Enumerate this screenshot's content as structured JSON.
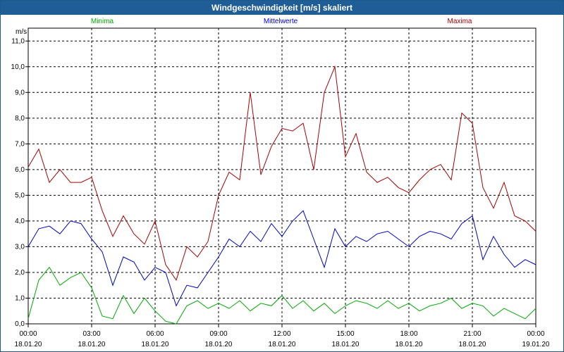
{
  "window": {
    "title": "Windgeschwindigkeit [m/s] skaliert"
  },
  "chart_data": {
    "type": "line",
    "title": "Windgeschwindigkeit [m/s] skaliert",
    "ylabel": "m/s",
    "ylim": [
      0,
      11.5
    ],
    "xlim": [
      0,
      24
    ],
    "grid": true,
    "legend_position": "top",
    "yticks": [
      "0,0",
      "1,0",
      "2,0",
      "3,0",
      "4,0",
      "5,0",
      "6,0",
      "7,0",
      "8,0",
      "9,0",
      "10,0",
      "11,0"
    ],
    "xticks": [
      {
        "time": "00:00",
        "date": "18.01.20"
      },
      {
        "time": "03:00",
        "date": "18.01.20"
      },
      {
        "time": "06:00",
        "date": "18.01.20"
      },
      {
        "time": "09:00",
        "date": "18.01.20"
      },
      {
        "time": "12:00",
        "date": "18.01.20"
      },
      {
        "time": "15:00",
        "date": "18.01.20"
      },
      {
        "time": "18:00",
        "date": "18.01.20"
      },
      {
        "time": "21:00",
        "date": "18.01.20"
      },
      {
        "time": "00:00",
        "date": "19.01.20"
      }
    ],
    "x": [
      0,
      0.5,
      1,
      1.5,
      2,
      2.5,
      3,
      3.5,
      4,
      4.5,
      5,
      5.5,
      6,
      6.5,
      7,
      7.5,
      8,
      8.5,
      9,
      9.5,
      10,
      10.5,
      11,
      11.5,
      12,
      12.5,
      13,
      13.5,
      14,
      14.5,
      15,
      15.5,
      16,
      16.5,
      17,
      17.5,
      18,
      18.5,
      19,
      19.5,
      20,
      20.5,
      21,
      21.5,
      22,
      22.5,
      23,
      23.5,
      24
    ],
    "series": [
      {
        "name": "Minima",
        "color": "#00aa00",
        "values": [
          0.2,
          1.7,
          2.2,
          1.5,
          1.8,
          2.0,
          1.4,
          0.3,
          0.2,
          1.1,
          0.4,
          1.0,
          0.5,
          0.1,
          0.0,
          0.7,
          0.9,
          0.6,
          0.8,
          0.6,
          0.9,
          0.5,
          0.8,
          0.7,
          1.1,
          0.6,
          0.9,
          0.5,
          0.8,
          0.4,
          0.7,
          0.9,
          0.8,
          0.6,
          0.9,
          0.6,
          0.8,
          0.5,
          0.7,
          0.8,
          1.0,
          0.6,
          0.8,
          0.7,
          0.3,
          0.6,
          0.4,
          0.2,
          0.6
        ]
      },
      {
        "name": "Mittelwerte",
        "color": "#0000cc",
        "values": [
          3.0,
          3.7,
          3.8,
          3.5,
          4.0,
          3.9,
          3.3,
          2.8,
          1.5,
          2.6,
          2.4,
          1.7,
          2.2,
          2.0,
          0.7,
          1.5,
          1.4,
          2.0,
          2.6,
          3.3,
          3.0,
          3.6,
          3.2,
          3.9,
          3.4,
          4.0,
          4.4,
          3.3,
          2.2,
          3.7,
          3.0,
          3.4,
          3.2,
          3.5,
          3.6,
          3.3,
          3.0,
          3.4,
          3.6,
          3.5,
          3.3,
          3.9,
          4.2,
          2.5,
          3.4,
          2.7,
          2.2,
          2.5,
          2.3
        ]
      },
      {
        "name": "Maxima",
        "color": "#aa0000",
        "values": [
          6.1,
          6.8,
          5.5,
          6.0,
          5.5,
          5.5,
          5.7,
          4.4,
          3.4,
          4.2,
          3.5,
          3.1,
          4.0,
          2.3,
          1.7,
          3.0,
          2.6,
          3.2,
          5.0,
          5.9,
          5.6,
          9.0,
          5.8,
          6.9,
          7.6,
          7.5,
          7.8,
          6.0,
          9.0,
          10.0,
          6.5,
          7.4,
          5.9,
          5.5,
          5.7,
          5.3,
          5.1,
          5.6,
          6.0,
          6.2,
          5.6,
          8.2,
          7.8,
          5.3,
          4.5,
          5.5,
          4.2,
          4.0,
          3.6
        ]
      }
    ]
  }
}
